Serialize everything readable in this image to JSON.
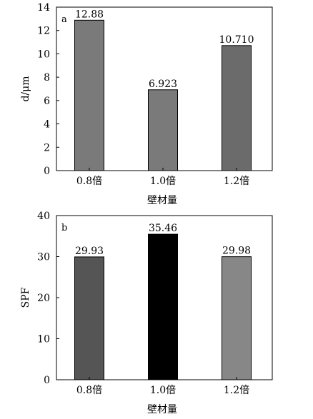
{
  "chart_data": [
    {
      "type": "bar",
      "panel_label": "a",
      "categories": [
        "0.8倍",
        "1.0倍",
        "1.2倍"
      ],
      "values": [
        12.88,
        6.923,
        10.71
      ],
      "value_labels": [
        "12.88",
        "6.923",
        "10.710"
      ],
      "bar_colors": [
        "#7a7a7a",
        "#7a7a7a",
        "#6b6b6b"
      ],
      "xlabel": "壁材量",
      "ylabel": "d/μm",
      "ylim": [
        0,
        14
      ],
      "yticks": [
        0,
        2,
        4,
        6,
        8,
        10,
        12,
        14
      ],
      "grid": false,
      "legend": "none"
    },
    {
      "type": "bar",
      "panel_label": "b",
      "categories": [
        "0.8倍",
        "1.0倍",
        "1.2倍"
      ],
      "values": [
        29.93,
        35.46,
        29.98
      ],
      "value_labels": [
        "29.93",
        "35.46",
        "29.98"
      ],
      "bar_colors": [
        "#555555",
        "#000000",
        "#878787"
      ],
      "xlabel": "壁材量",
      "ylabel": "SPF",
      "ylim": [
        0,
        40
      ],
      "yticks": [
        0,
        10,
        20,
        30,
        40
      ],
      "grid": false,
      "legend": "none"
    }
  ]
}
